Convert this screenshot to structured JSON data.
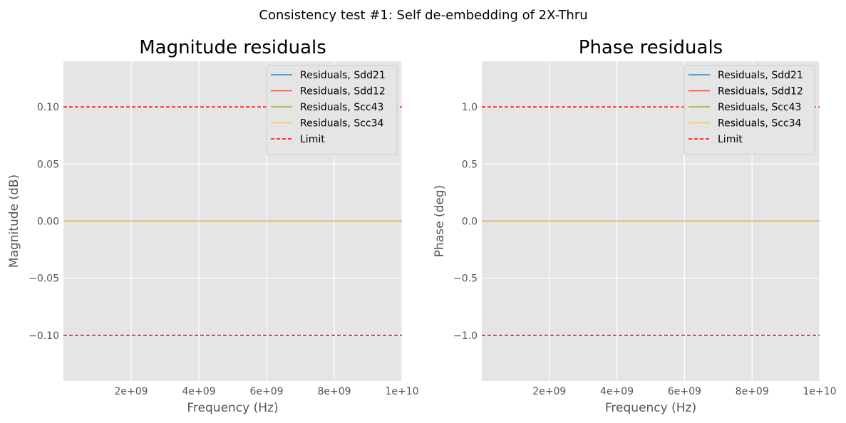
{
  "figure": {
    "suptitle": "Consistency test #1: Self de-embedding of 2X-Thru"
  },
  "chart_data": [
    {
      "type": "line",
      "title": "Magnitude residuals",
      "xlabel": "Frequency (Hz)",
      "ylabel": "Magnitude (dB)",
      "xlim": [
        0,
        10000000000
      ],
      "ylim": [
        -0.14,
        0.14
      ],
      "xticks": [
        2000000000,
        4000000000,
        6000000000,
        8000000000,
        10000000000
      ],
      "xtick_labels": [
        "2e+09",
        "4e+09",
        "6e+09",
        "8e+09",
        "1e+10"
      ],
      "yticks": [
        -0.1,
        -0.05,
        0.0,
        0.05,
        0.1
      ],
      "ytick_labels": [
        "−0.10",
        "−0.05",
        "0.00",
        "0.05",
        "0.10"
      ],
      "grid": true,
      "legend_position": "top-right",
      "x": [
        0,
        10000000000
      ],
      "series": [
        {
          "name": "Residuals, Sdd21",
          "color": "#348ABD",
          "dashed": false,
          "values": [
            0,
            0
          ]
        },
        {
          "name": "Residuals, Sdd12",
          "color": "#E24A33",
          "dashed": false,
          "values": [
            0,
            0
          ]
        },
        {
          "name": "Residuals, Scc43",
          "color": "#8EBA42",
          "dashed": false,
          "values": [
            0,
            0
          ]
        },
        {
          "name": "Residuals, Scc34",
          "color": "#FBC15E",
          "dashed": false,
          "values": [
            0,
            0
          ]
        },
        {
          "name": "Limit",
          "color": "#FF0000",
          "dashed": true,
          "values": [
            0.1,
            0.1
          ],
          "mirror": true
        }
      ]
    },
    {
      "type": "line",
      "title": "Phase residuals",
      "xlabel": "Frequency (Hz)",
      "ylabel": "Phase (deg)",
      "xlim": [
        0,
        10000000000
      ],
      "ylim": [
        -1.4,
        1.4
      ],
      "xticks": [
        2000000000,
        4000000000,
        6000000000,
        8000000000,
        10000000000
      ],
      "xtick_labels": [
        "2e+09",
        "4e+09",
        "6e+09",
        "8e+09",
        "1e+10"
      ],
      "yticks": [
        -1.0,
        -0.5,
        0.0,
        0.5,
        1.0
      ],
      "ytick_labels": [
        "−1.0",
        "−0.5",
        "0.0",
        "0.5",
        "1.0"
      ],
      "grid": true,
      "legend_position": "top-right",
      "x": [
        0,
        10000000000
      ],
      "series": [
        {
          "name": "Residuals, Sdd21",
          "color": "#348ABD",
          "dashed": false,
          "values": [
            0,
            0
          ]
        },
        {
          "name": "Residuals, Sdd12",
          "color": "#E24A33",
          "dashed": false,
          "values": [
            0,
            0
          ]
        },
        {
          "name": "Residuals, Scc43",
          "color": "#8EBA42",
          "dashed": false,
          "values": [
            0,
            0
          ]
        },
        {
          "name": "Residuals, Scc34",
          "color": "#FBC15E",
          "dashed": false,
          "values": [
            0,
            0
          ]
        },
        {
          "name": "Limit",
          "color": "#FF0000",
          "dashed": true,
          "values": [
            1.0,
            1.0
          ],
          "mirror": true
        }
      ]
    }
  ]
}
